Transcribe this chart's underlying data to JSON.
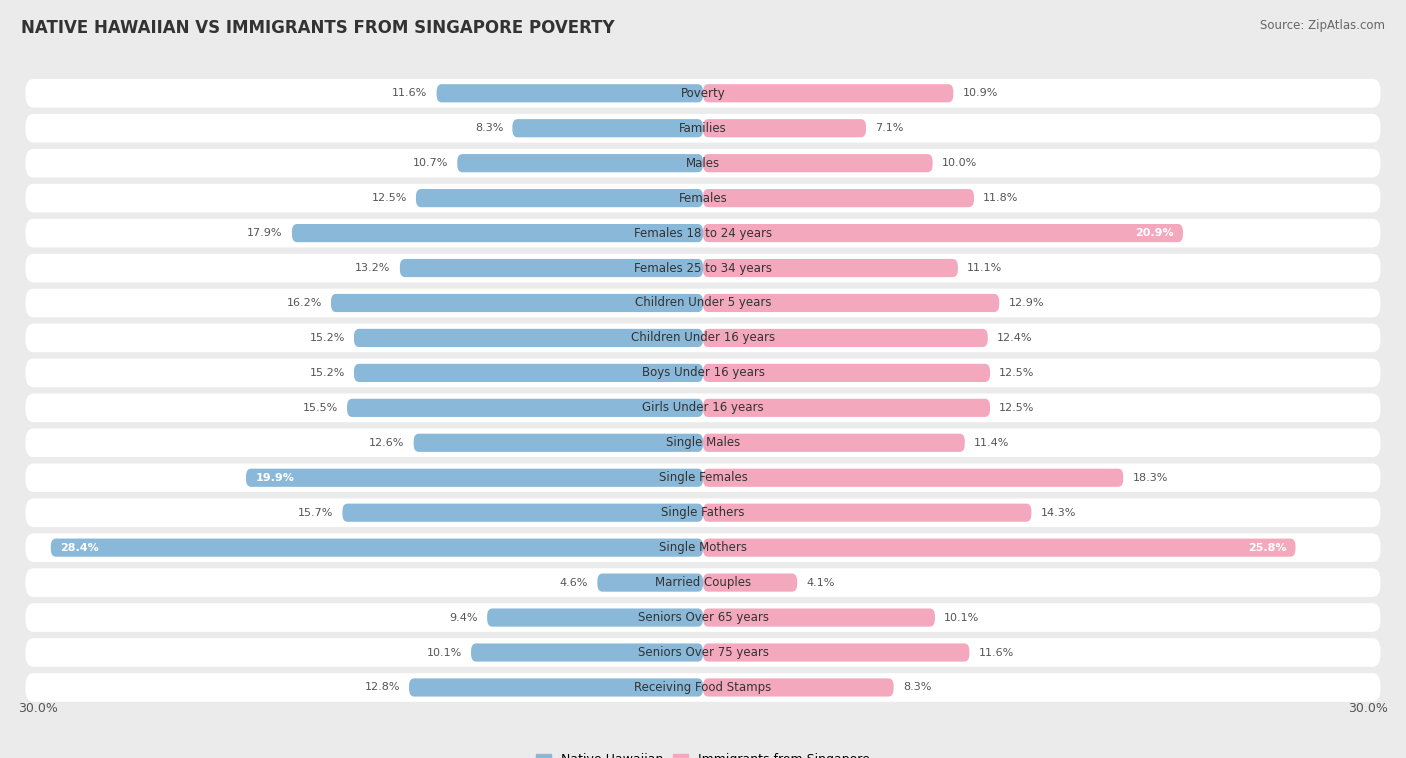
{
  "title": "NATIVE HAWAIIAN VS IMMIGRANTS FROM SINGAPORE POVERTY",
  "source": "Source: ZipAtlas.com",
  "categories": [
    "Poverty",
    "Families",
    "Males",
    "Females",
    "Females 18 to 24 years",
    "Females 25 to 34 years",
    "Children Under 5 years",
    "Children Under 16 years",
    "Boys Under 16 years",
    "Girls Under 16 years",
    "Single Males",
    "Single Females",
    "Single Fathers",
    "Single Mothers",
    "Married Couples",
    "Seniors Over 65 years",
    "Seniors Over 75 years",
    "Receiving Food Stamps"
  ],
  "native_hawaiian": [
    11.6,
    8.3,
    10.7,
    12.5,
    17.9,
    13.2,
    16.2,
    15.2,
    15.2,
    15.5,
    12.6,
    19.9,
    15.7,
    28.4,
    4.6,
    9.4,
    10.1,
    12.8
  ],
  "singapore": [
    10.9,
    7.1,
    10.0,
    11.8,
    20.9,
    11.1,
    12.9,
    12.4,
    12.5,
    12.5,
    11.4,
    18.3,
    14.3,
    25.8,
    4.1,
    10.1,
    11.6,
    8.3
  ],
  "max_val": 30.0,
  "blue_color": "#89b8d8",
  "pink_color": "#f4a8be",
  "bg_color": "#ebebeb",
  "white_thresh_native": [
    19.9,
    28.4
  ],
  "white_thresh_singapore": [
    20.9,
    25.8
  ],
  "title_fontsize": 12,
  "source_fontsize": 8.5,
  "cat_fontsize": 8.5,
  "val_fontsize": 8
}
